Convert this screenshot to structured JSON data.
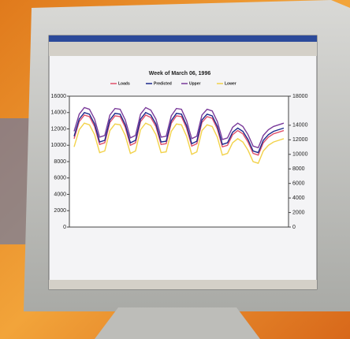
{
  "chart_data": {
    "type": "line",
    "title": "Week of March 06, 1996",
    "series": [
      {
        "name": "Loads",
        "color": "#e0506a",
        "values": [
          10800,
          12900,
          13700,
          13500,
          12300,
          10100,
          10300,
          12800,
          13600,
          13500,
          12200,
          10000,
          10300,
          12900,
          13700,
          13400,
          12300,
          10100,
          10200,
          12700,
          13600,
          13500,
          12100,
          9900,
          10200,
          12800,
          13500,
          13300,
          12000,
          9800,
          10000,
          11300,
          11800,
          11400,
          10400,
          9000,
          8800,
          10300,
          11000,
          11400,
          11600,
          11800
        ]
      },
      {
        "name": "Predicted",
        "color": "#1c2a8c",
        "values": [
          11100,
          13200,
          14000,
          13800,
          12600,
          10400,
          10600,
          13100,
          13900,
          13800,
          12500,
          10300,
          10600,
          13200,
          14000,
          13700,
          12600,
          10400,
          10500,
          13000,
          13900,
          13800,
          12400,
          10200,
          10500,
          13100,
          13800,
          13600,
          12300,
          10100,
          10300,
          11600,
          12100,
          11700,
          10700,
          9300,
          9100,
          10600,
          11300,
          11700,
          11900,
          12100
        ]
      },
      {
        "name": "Upper",
        "color": "#7a3a9a",
        "values": [
          11700,
          13800,
          14600,
          14400,
          13200,
          11000,
          11200,
          13700,
          14500,
          14400,
          13100,
          10900,
          11200,
          13800,
          14600,
          14300,
          13200,
          11000,
          11100,
          13600,
          14500,
          14400,
          13000,
          10800,
          11100,
          13700,
          14400,
          14200,
          12900,
          10700,
          10900,
          12200,
          12700,
          12300,
          11300,
          9900,
          9700,
          11200,
          11900,
          12300,
          12500,
          12700
        ]
      },
      {
        "name": "Lower",
        "color": "#f2d24a",
        "values": [
          9800,
          11900,
          12700,
          12500,
          11300,
          9100,
          9300,
          11800,
          12600,
          12500,
          11200,
          9000,
          9300,
          11900,
          12700,
          12400,
          11300,
          9100,
          9200,
          11700,
          12600,
          12500,
          11100,
          8900,
          9200,
          11800,
          12500,
          12300,
          11000,
          8800,
          9000,
          10300,
          10800,
          10400,
          9400,
          8000,
          7800,
          9300,
          10000,
          10400,
          10600,
          10800
        ]
      }
    ],
    "ylim": [
      0,
      16000
    ],
    "yticks": [
      0,
      2000,
      4000,
      6000,
      8000,
      10000,
      12000,
      14000,
      16000
    ],
    "y2lim": [
      0,
      18000
    ],
    "y2ticks": [
      0,
      2000,
      4000,
      6000,
      8000,
      10000,
      12000,
      14000,
      18000
    ]
  }
}
